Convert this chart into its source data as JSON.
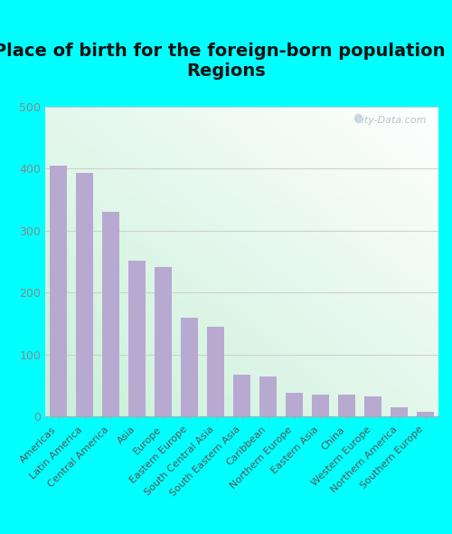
{
  "title": "Place of birth for the foreign-born population -\nRegions",
  "categories": [
    "Americas",
    "Latin America",
    "Central America",
    "Asia",
    "Europe",
    "Eastern Europe",
    "South Central Asia",
    "South Eastern Asia",
    "Caribbean",
    "Northern Europe",
    "Eastern Asia",
    "China",
    "Western Europe",
    "Northern America",
    "Southern Europe"
  ],
  "values": [
    405,
    393,
    330,
    252,
    242,
    160,
    145,
    68,
    65,
    38,
    35,
    35,
    33,
    15,
    7
  ],
  "bar_color": "#b8a9d0",
  "ylim": [
    0,
    500
  ],
  "yticks": [
    0,
    100,
    200,
    300,
    400,
    500
  ],
  "fig_bg": "#00ffff",
  "grid_color": "#d0d0d0",
  "title_fontsize": 14,
  "title_color": "#111111",
  "tick_label_fontsize": 8,
  "ytick_color": "#888888",
  "watermark": "City-Data.com"
}
